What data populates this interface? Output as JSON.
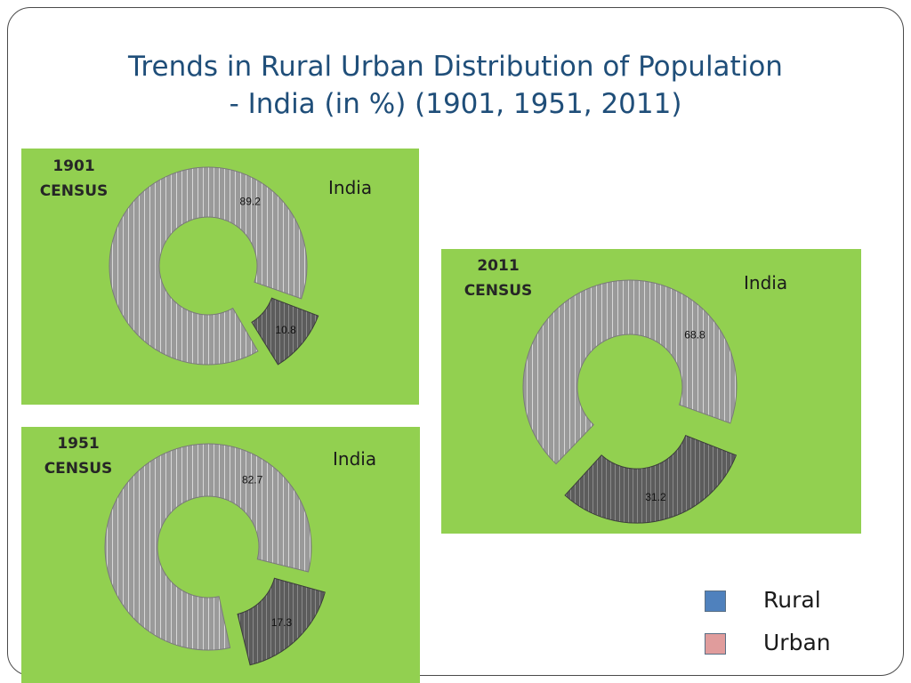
{
  "slide": {
    "title_line1": "Trends in Rural Urban Distribution of Population",
    "title_line2": "- India (in %) (1901, 1951, 2011)"
  },
  "chart_data": [
    {
      "type": "pie",
      "variant": "doughnut, exploded",
      "title_line1": "1901",
      "title_line2": "CENSUS",
      "subtitle": "India",
      "categories": [
        "Rural",
        "Urban"
      ],
      "values": [
        89.2,
        10.8
      ]
    },
    {
      "type": "pie",
      "variant": "doughnut, exploded",
      "title_line1": "1951",
      "title_line2": "CENSUS",
      "subtitle": "India",
      "categories": [
        "Rural",
        "Urban"
      ],
      "values": [
        82.7,
        17.3
      ]
    },
    {
      "type": "pie",
      "variant": "doughnut, exploded",
      "title_line1": "2011",
      "title_line2": "CENSUS",
      "subtitle": "India",
      "categories": [
        "Rural",
        "Urban"
      ],
      "values": [
        68.8,
        31.2
      ]
    }
  ],
  "legend": {
    "placement": "bottom-right",
    "items": [
      {
        "label": "Rural",
        "color": "#4f81bd"
      },
      {
        "label": "Urban",
        "color": "#e09c9c"
      }
    ]
  },
  "colors": {
    "panel_background": "#92d050",
    "rural_fill": "#9a9a9a",
    "urban_fill": "#5c5c5c",
    "title": "#1f4e79"
  }
}
